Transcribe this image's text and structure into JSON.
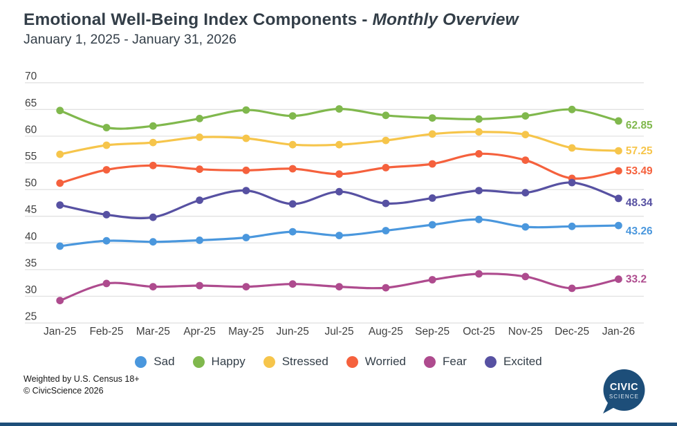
{
  "header": {
    "title_main": "Emotional Well-Being Index Components - ",
    "title_em": "Monthly Overview",
    "subtitle": "January 1, 2025 - January 31, 2026"
  },
  "footer": {
    "line1": "Weighted by U.S. Census 18+",
    "line2": "© CivicScience 2026"
  },
  "logo": {
    "word1": "CIVIC",
    "word2": "SCIENCE",
    "bubble_color": "#1d4e79",
    "text_color": "#ffffff"
  },
  "colors": {
    "title": "#333e48",
    "tick_label": "#3f3f3f",
    "gridline": "#e2e2e2",
    "legend_text": "#333e48",
    "bottom_bar": "#1d4e79"
  },
  "chart_data": {
    "type": "line",
    "title": "Emotional Well-Being Index Components - Monthly Overview",
    "subtitle": "January 1, 2025 - January 31, 2026",
    "xlabel": "",
    "ylabel": "",
    "ylim": [
      25,
      70
    ],
    "ytick_step": 5,
    "grid": true,
    "legend_position": "bottom",
    "categories": [
      "Jan-25",
      "Feb-25",
      "Mar-25",
      "Apr-25",
      "May-25",
      "Jun-25",
      "Jul-25",
      "Aug-25",
      "Sep-25",
      "Oct-25",
      "Nov-25",
      "Dec-25",
      "Jan-26"
    ],
    "series": [
      {
        "name": "Sad",
        "color": "#4a97dd",
        "end_label": "43.26",
        "label_dy": 13,
        "values": [
          39.4,
          40.4,
          40.2,
          40.5,
          41.0,
          42.1,
          41.4,
          42.3,
          43.4,
          44.4,
          43.0,
          43.1,
          43.26
        ]
      },
      {
        "name": "Happy",
        "color": "#80b84d",
        "end_label": "62.85",
        "label_dy": 11,
        "values": [
          64.8,
          61.6,
          61.9,
          63.3,
          64.9,
          63.8,
          65.1,
          63.9,
          63.4,
          63.2,
          63.8,
          65.0,
          62.85
        ]
      },
      {
        "name": "Stressed",
        "color": "#f6c54b",
        "end_label": "57.25",
        "label_dy": 5,
        "values": [
          56.6,
          58.3,
          58.8,
          59.8,
          59.6,
          58.4,
          58.4,
          59.2,
          60.4,
          60.8,
          60.3,
          57.8,
          57.25
        ]
      },
      {
        "name": "Worried",
        "color": "#f5613d",
        "end_label": "53.49",
        "label_dy": 5,
        "values": [
          51.2,
          53.7,
          54.5,
          53.8,
          53.6,
          53.9,
          52.9,
          54.1,
          54.8,
          56.7,
          55.5,
          52.1,
          53.49
        ]
      },
      {
        "name": "Fear",
        "color": "#ae4b8e",
        "end_label": "33.2",
        "label_dy": 5,
        "values": [
          29.2,
          32.4,
          31.8,
          32.0,
          31.8,
          32.3,
          31.8,
          31.6,
          33.1,
          34.2,
          33.7,
          31.5,
          33.2
        ]
      },
      {
        "name": "Excited",
        "color": "#5751a2",
        "end_label": "48.34",
        "label_dy": 11,
        "values": [
          47.1,
          45.3,
          44.8,
          48.0,
          49.8,
          47.3,
          49.6,
          47.4,
          48.4,
          49.8,
          49.4,
          51.3,
          48.34
        ]
      }
    ]
  }
}
